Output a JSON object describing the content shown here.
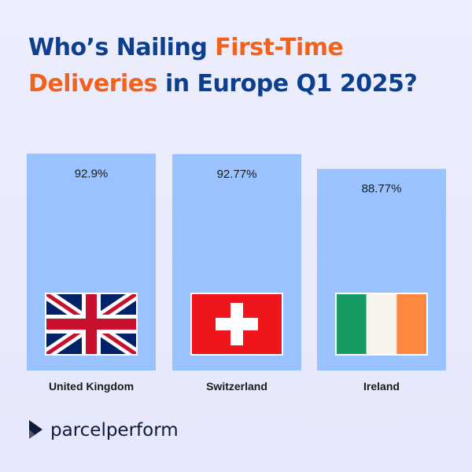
{
  "title": {
    "part1": "Who’s Nailing ",
    "part2": "First-Time",
    "part3": "Deliveries",
    "part4": " in Europe Q1 2025?"
  },
  "colors": {
    "title_main": "#0d3f8f",
    "title_accent": "#f2621f",
    "bar": "#99c2fe"
  },
  "chart_data": {
    "type": "bar",
    "categories": [
      "United Kingdom",
      "Switzerland",
      "Ireland"
    ],
    "values": [
      92.9,
      92.77,
      88.77
    ],
    "value_labels": [
      "92.9%",
      "92.77%",
      "88.77%"
    ],
    "flags": [
      "uk-flag",
      "switzerland-flag",
      "ireland-flag"
    ],
    "title": "",
    "xlabel": "",
    "ylabel": "",
    "ylim": [
      0,
      100
    ],
    "grid": false
  },
  "brand": {
    "name": "parcelperform",
    "icon": "parcelperform-logo-icon"
  }
}
